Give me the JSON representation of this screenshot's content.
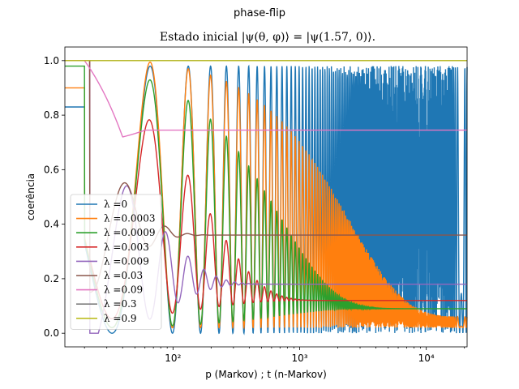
{
  "figure": {
    "suptitle": "phase-flip"
  },
  "chart_data": {
    "type": "line",
    "title": "Estado inicial |ψ(θ, φ)⟩ = |ψ(1.57, 0)⟩.",
    "xlabel": "p (Markov) ; t (n-Markov)",
    "ylabel": "coerência",
    "xscale": "log",
    "xlim": [
      14,
      21000
    ],
    "ylim": [
      -0.05,
      1.05
    ],
    "yticks": [
      0.0,
      0.2,
      0.4,
      0.6,
      0.8,
      1.0
    ],
    "ytick_labels": [
      "0.0",
      "0.2",
      "0.4",
      "0.6",
      "0.8",
      "1.0"
    ],
    "xticks": [
      100,
      1000,
      10000
    ],
    "xtick_labels": [
      "10²",
      "10³",
      "10⁴"
    ],
    "grid": false,
    "legend_position": "lower-left",
    "series": [
      {
        "name": "λ =0",
        "color": "#1f77b4",
        "start": 0.83,
        "drop_at": 20,
        "min_level": 0.02,
        "end_level": 0.5,
        "envelope_lo": 0.0,
        "envelope_hi": 0.99,
        "period_factor": 1.0
      },
      {
        "name": "λ =0.0003",
        "color": "#ff7f0e",
        "start": 0.9,
        "drop_at": 20,
        "end_level": 0.04,
        "envelope_hi_start": 0.99,
        "envelope_hi_end": 0.06
      },
      {
        "name": "λ =0.0009",
        "color": "#2ca02c",
        "start": 0.98,
        "drop_at": 20,
        "end_level": 0.09
      },
      {
        "name": "λ =0.003",
        "color": "#d62728",
        "start": 1.0,
        "drop_at": 22,
        "end_level": 0.12
      },
      {
        "name": "λ =0.009",
        "color": "#9467bd",
        "start": 1.0,
        "drop_at": 22,
        "end_level": 0.18
      },
      {
        "name": "λ =0.03",
        "color": "#8c564b",
        "start": 1.0,
        "drop_at": 22,
        "end_level": 0.36
      },
      {
        "name": "λ =0.09",
        "color": "#e377c2",
        "start": 1.0,
        "drop_at": 20,
        "min_level": 0.72,
        "end_level": 0.745
      },
      {
        "name": "λ =0.3",
        "color": "#7f7f7f",
        "start": 1.0,
        "end_level": 0.99
      },
      {
        "name": "λ =0.9",
        "color": "#bcbd22",
        "start": 1.0,
        "end_level": 0.999
      }
    ]
  }
}
